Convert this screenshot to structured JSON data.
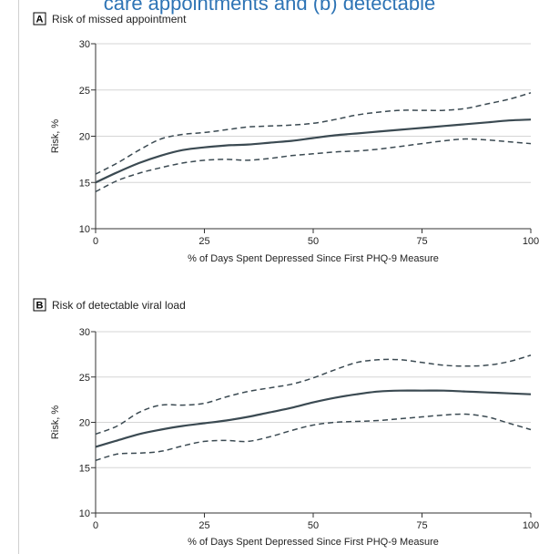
{
  "caption_fragment": "care appointments and (b) detectable",
  "chart_data": [
    {
      "type": "line",
      "panel_letter": "A",
      "title": "Risk of missed appointment",
      "xlabel": "% of Days Spent Depressed Since First PHQ-9 Measure",
      "ylabel": "Risk, %",
      "xlim": [
        0,
        100
      ],
      "ylim": [
        10,
        30
      ],
      "x_ticks": [
        "0",
        "25",
        "50",
        "75",
        "100"
      ],
      "y_ticks": [
        "10",
        "15",
        "20",
        "25",
        "30"
      ],
      "grid": true,
      "series": [
        {
          "role": "estimate",
          "style": "solid",
          "x": [
            0,
            5,
            10,
            15,
            20,
            25,
            30,
            35,
            40,
            45,
            50,
            55,
            60,
            65,
            70,
            75,
            80,
            85,
            90,
            95,
            100
          ],
          "values": [
            15.0,
            16.1,
            17.1,
            17.9,
            18.5,
            18.8,
            19.0,
            19.1,
            19.3,
            19.5,
            19.8,
            20.1,
            20.3,
            20.5,
            20.7,
            20.9,
            21.1,
            21.3,
            21.5,
            21.7,
            21.8
          ]
        },
        {
          "role": "upper",
          "style": "dashed",
          "x": [
            0,
            5,
            10,
            15,
            20,
            25,
            30,
            35,
            40,
            45,
            50,
            55,
            60,
            65,
            70,
            75,
            80,
            85,
            90,
            95,
            100
          ],
          "values": [
            15.9,
            17.1,
            18.5,
            19.7,
            20.2,
            20.4,
            20.7,
            21.0,
            21.1,
            21.2,
            21.4,
            21.8,
            22.3,
            22.6,
            22.8,
            22.8,
            22.8,
            23.0,
            23.5,
            24.0,
            24.7
          ]
        },
        {
          "role": "lower",
          "style": "dashed",
          "x": [
            0,
            5,
            10,
            15,
            20,
            25,
            30,
            35,
            40,
            45,
            50,
            55,
            60,
            65,
            70,
            75,
            80,
            85,
            90,
            95,
            100
          ],
          "values": [
            14.0,
            15.2,
            16.0,
            16.6,
            17.1,
            17.4,
            17.5,
            17.4,
            17.6,
            17.9,
            18.1,
            18.3,
            18.4,
            18.6,
            18.9,
            19.2,
            19.5,
            19.7,
            19.6,
            19.4,
            19.2
          ]
        }
      ]
    },
    {
      "type": "line",
      "panel_letter": "B",
      "title": "Risk of detectable viral load",
      "xlabel": "% of Days Spent Depressed Since First PHQ-9 Measure",
      "ylabel": "Risk, %",
      "xlim": [
        0,
        100
      ],
      "ylim": [
        10,
        30
      ],
      "x_ticks": [
        "0",
        "25",
        "50",
        "75",
        "100"
      ],
      "y_ticks": [
        "10",
        "15",
        "20",
        "25",
        "30"
      ],
      "grid": true,
      "series": [
        {
          "role": "estimate",
          "style": "solid",
          "x": [
            0,
            5,
            10,
            15,
            20,
            25,
            30,
            35,
            40,
            45,
            50,
            55,
            60,
            65,
            70,
            75,
            80,
            85,
            90,
            95,
            100
          ],
          "values": [
            17.3,
            18.0,
            18.7,
            19.2,
            19.6,
            19.9,
            20.2,
            20.6,
            21.1,
            21.6,
            22.2,
            22.7,
            23.1,
            23.4,
            23.5,
            23.5,
            23.5,
            23.4,
            23.3,
            23.2,
            23.1
          ]
        },
        {
          "role": "upper",
          "style": "dashed",
          "x": [
            0,
            5,
            10,
            15,
            20,
            25,
            30,
            35,
            40,
            45,
            50,
            55,
            60,
            65,
            70,
            75,
            80,
            85,
            90,
            95,
            100
          ],
          "values": [
            18.7,
            19.6,
            21.1,
            21.9,
            21.9,
            22.1,
            22.8,
            23.4,
            23.8,
            24.2,
            24.9,
            25.8,
            26.6,
            26.9,
            26.9,
            26.6,
            26.3,
            26.2,
            26.3,
            26.7,
            27.4
          ]
        },
        {
          "role": "lower",
          "style": "dashed",
          "x": [
            0,
            5,
            10,
            15,
            20,
            25,
            30,
            35,
            40,
            45,
            50,
            55,
            60,
            65,
            70,
            75,
            80,
            85,
            90,
            95,
            100
          ],
          "values": [
            15.8,
            16.5,
            16.6,
            16.8,
            17.4,
            17.9,
            18.0,
            17.9,
            18.4,
            19.1,
            19.7,
            20.0,
            20.1,
            20.2,
            20.4,
            20.6,
            20.8,
            20.9,
            20.6,
            19.9,
            19.2
          ]
        }
      ]
    }
  ]
}
